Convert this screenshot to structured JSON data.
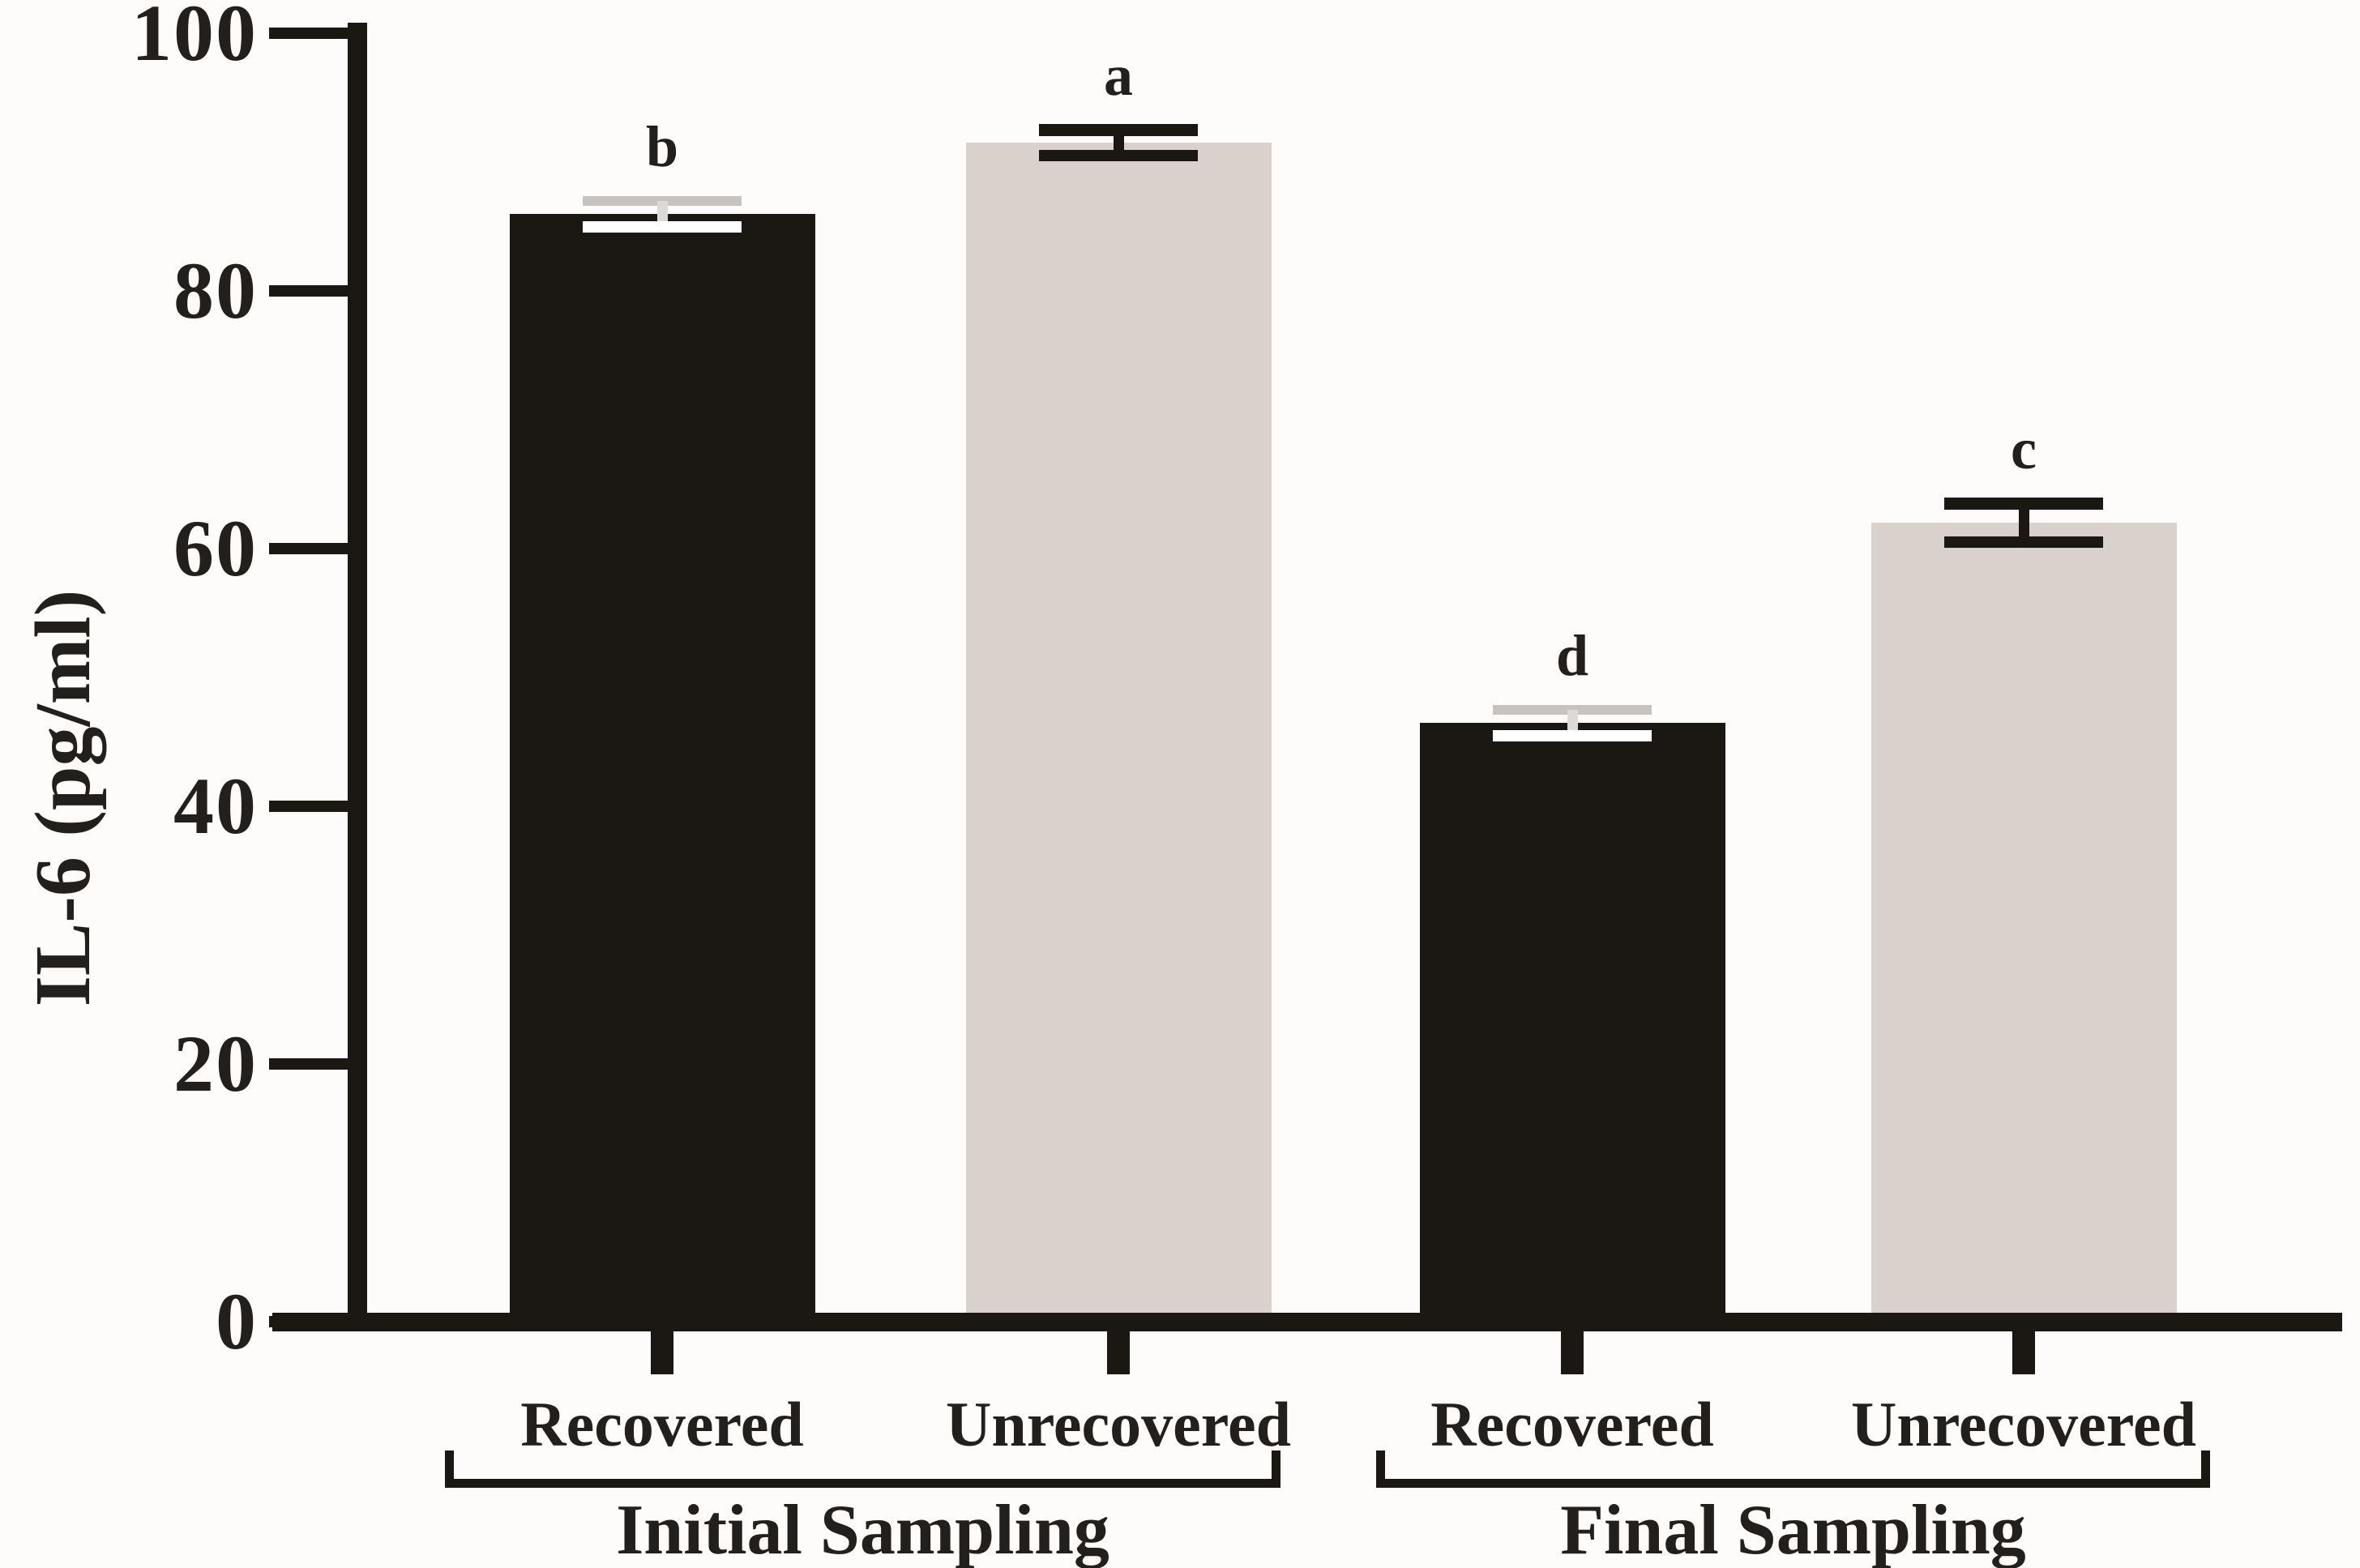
{
  "chart_data": {
    "type": "bar",
    "title": "",
    "xlabel": "",
    "ylabel": "IL-6 (pg/ml)",
    "ylim": [
      0,
      100
    ],
    "yticks": [
      0,
      20,
      40,
      60,
      80,
      100
    ],
    "grid": false,
    "legend": "none",
    "bars": [
      {
        "group": "Initial Sampling",
        "category": "Recovered",
        "value": 86,
        "error": 1.0,
        "letter": "b",
        "color_key": "dark"
      },
      {
        "group": "Initial Sampling",
        "category": "Unrecovered",
        "value": 91.5,
        "error": 1.0,
        "letter": "a",
        "color_key": "light"
      },
      {
        "group": "Final Sampling",
        "category": "Recovered",
        "value": 46.5,
        "error": 1.0,
        "letter": "d",
        "color_key": "dark"
      },
      {
        "group": "Final Sampling",
        "category": "Unrecovered",
        "value": 62,
        "error": 1.5,
        "letter": "c",
        "color_key": "light"
      }
    ],
    "groups": [
      {
        "label": "Initial Sampling",
        "bar_indices": [
          0,
          1
        ]
      },
      {
        "label": "Final Sampling",
        "bar_indices": [
          2,
          3
        ]
      }
    ],
    "colors": {
      "background": "#fdfcfa",
      "axis": "#1b1813",
      "text": "#231f1c",
      "bar_dark": "#1b1813",
      "bar_light": "#d9d2cc",
      "error_on_light_bar": "#1b1813",
      "error_on_dark_bar_top_cap": "#c6c3c0",
      "error_on_dark_bar_stem": "#dcd9d6",
      "error_on_dark_bar_bottom_cap": "#ffffff"
    }
  }
}
